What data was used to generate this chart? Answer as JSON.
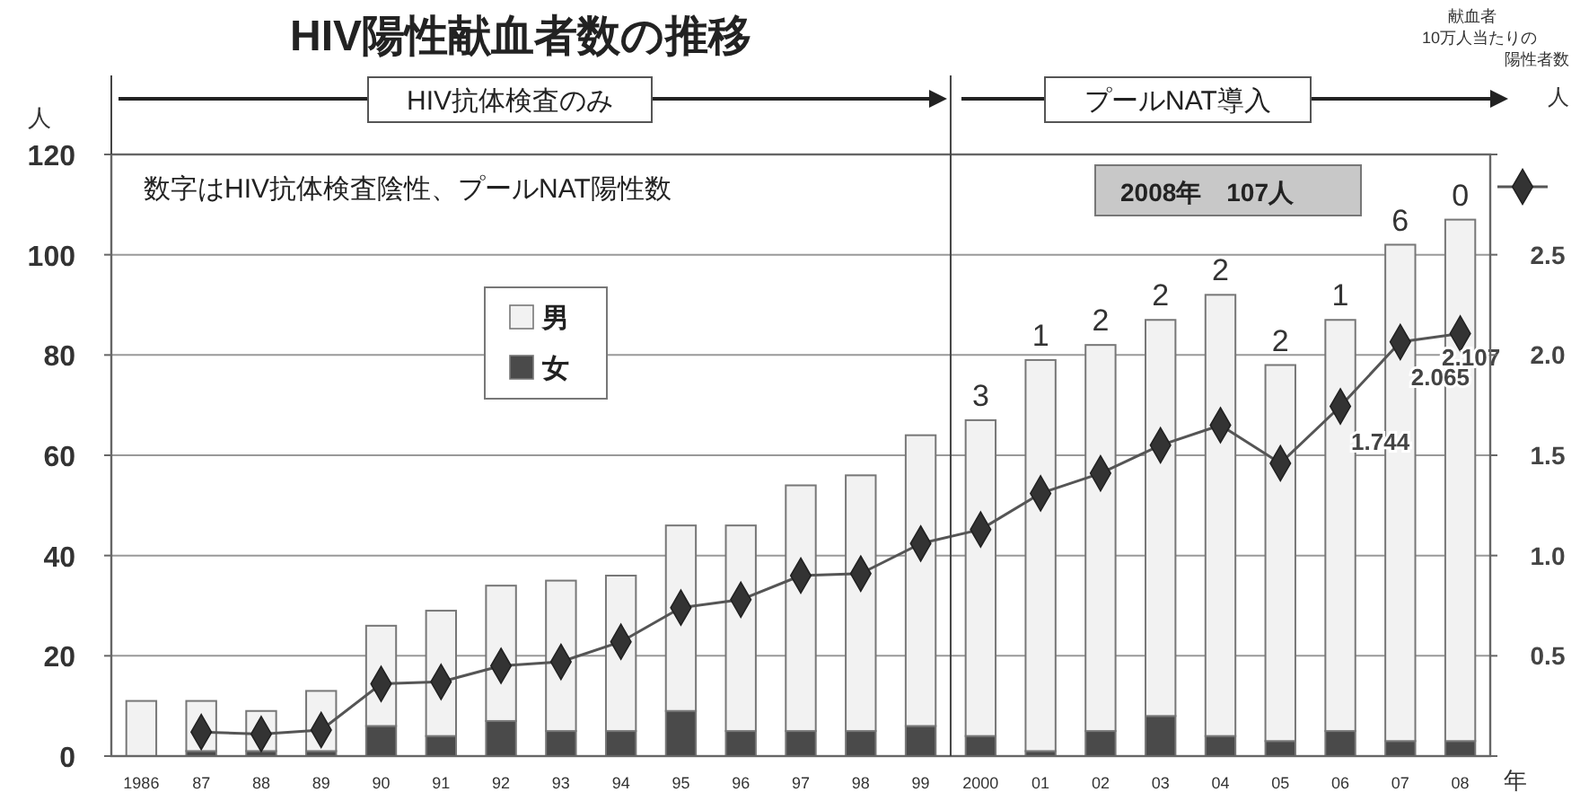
{
  "chart_data": {
    "type": "bar",
    "stacked": true,
    "title": "HIV陽性献血者数の推移",
    "xlabel": "年",
    "ylabel": "人",
    "y2label": "献血者10万人当たりの陽性者数",
    "categories": [
      "1986",
      "87",
      "88",
      "89",
      "90",
      "91",
      "92",
      "93",
      "94",
      "95",
      "96",
      "97",
      "98",
      "99",
      "2000",
      "01",
      "02",
      "03",
      "04",
      "05",
      "06",
      "07",
      "08"
    ],
    "series": [
      {
        "name": "女",
        "color": "#4a4a4a",
        "values": [
          0,
          1,
          1,
          1,
          6,
          4,
          7,
          5,
          5,
          9,
          5,
          5,
          5,
          6,
          4,
          1,
          5,
          8,
          4,
          3,
          5,
          3,
          3
        ]
      },
      {
        "name": "男",
        "color": "#f2f2f2",
        "values": [
          11,
          10,
          8,
          12,
          20,
          25,
          27,
          30,
          31,
          37,
          41,
          49,
          51,
          58,
          63,
          78,
          77,
          79,
          88,
          75,
          82,
          99,
          104
        ]
      },
      {
        "type": "line",
        "axis": "y2",
        "color": "#555555",
        "marker": "diamond",
        "values": [
          null,
          0.12,
          0.11,
          0.13,
          0.36,
          0.37,
          0.45,
          0.47,
          0.57,
          0.74,
          0.78,
          0.9,
          0.91,
          1.06,
          1.13,
          1.31,
          1.41,
          1.55,
          1.65,
          1.46,
          1.744,
          2.065,
          2.107
        ],
        "value_labels": [
          null,
          null,
          null,
          null,
          null,
          null,
          null,
          null,
          null,
          null,
          null,
          null,
          null,
          null,
          null,
          null,
          null,
          null,
          null,
          null,
          "1.744",
          "2.065",
          "2.107"
        ]
      }
    ],
    "ylim": [
      0,
      120
    ],
    "yticks": [
      0,
      20,
      40,
      60,
      80,
      100,
      120
    ],
    "y2lim": [
      0,
      3
    ],
    "y2ticks": [
      {
        "value": 0,
        "label": null
      },
      0.5,
      {
        "value": 1,
        "label": "1.0"
      },
      1.5,
      {
        "value": 2,
        "label": "2.0"
      },
      2.5,
      {
        "value": 3,
        "label": null
      }
    ],
    "grid": "y",
    "legend": "top left",
    "ref_lines": [
      {
        "axis": "x",
        "value": "2000",
        "color": "#444444"
      }
    ],
    "annotations": [
      "数字はHIV抗体検査陰性、プールNAT陽性数",
      "2008年　107人",
      "HIV抗体検査のみ",
      "プールNAT導入",
      "人",
      {
        "text": "3",
        "x": "2000",
        "y": 67
      },
      {
        "text": "1",
        "x": "01",
        "y": 79
      },
      {
        "text": "2",
        "x": "02",
        "y": 82
      },
      {
        "text": "2",
        "x": "03",
        "y": 87
      },
      {
        "text": "2",
        "x": "04",
        "y": 92
      },
      {
        "text": "2",
        "x": "05",
        "y": 78
      },
      {
        "text": "1",
        "x": "06",
        "y": 87
      },
      {
        "text": "6",
        "x": "07",
        "y": 102
      },
      {
        "text": "0",
        "x": "08",
        "y": 107
      }
    ]
  }
}
